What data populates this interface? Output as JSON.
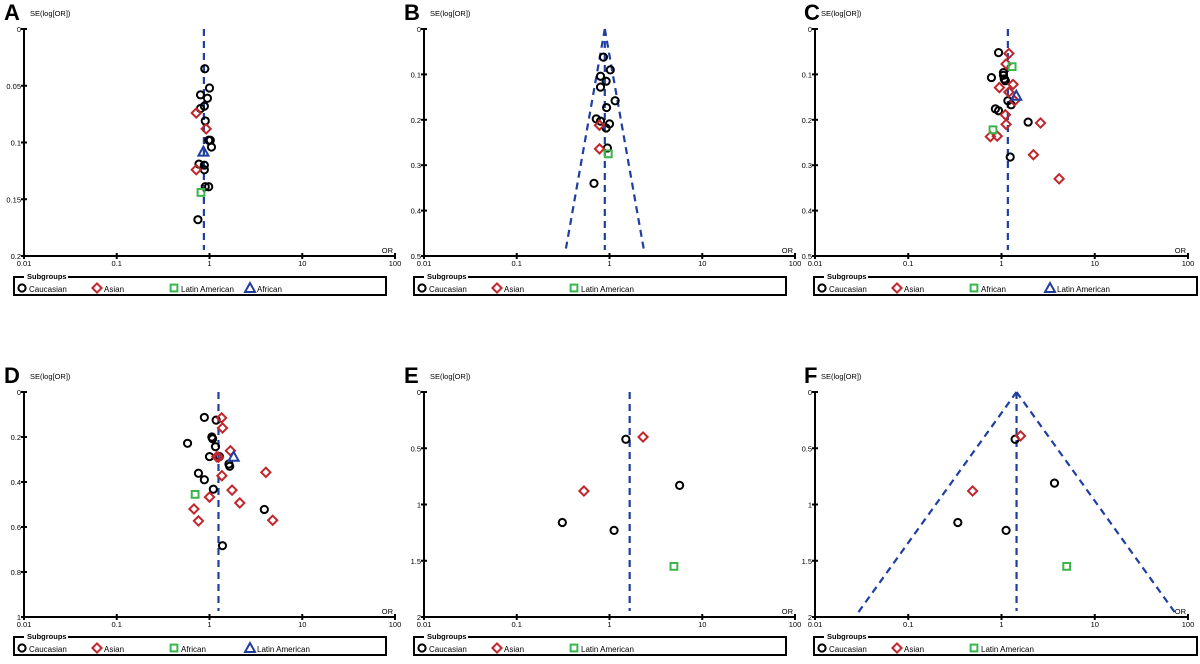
{
  "figure": {
    "marker_colors": {
      "Caucasian": "#000000",
      "Asian": "#c0272d",
      "Latin American": "#3cb44b",
      "African": "#3cb44b",
      "African_triangle": "#1f3fa0"
    },
    "line_color": "#1f3fa0",
    "legend_title": "Subgroups"
  },
  "chart_data": [
    {
      "panel": "A",
      "type": "scatter",
      "subtype": "funnel",
      "xlabel": "OR",
      "ylabel": "SE(log[OR])",
      "xscale": "log",
      "xlim": [
        0.01,
        100
      ],
      "ylim": [
        0,
        0.2
      ],
      "xticks": [
        "0.01",
        "0.1",
        "1",
        "10",
        "100"
      ],
      "yticks": [
        0,
        0.05,
        0.1,
        0.15,
        0.2
      ],
      "ytick_labels": [
        "0",
        "0.05",
        "0.1",
        "0.15",
        "0.2"
      ],
      "pooled_or": 0.87,
      "funnel_limits": false,
      "legend": [
        {
          "label": "Caucasian",
          "marker": "circle",
          "color": "#000000"
        },
        {
          "label": "Asian",
          "marker": "diamond",
          "color": "#c0272d"
        },
        {
          "label": "Latin American",
          "marker": "square",
          "color": "#3cb44b"
        },
        {
          "label": "African",
          "marker": "triangle",
          "color": "#1f3fa0"
        }
      ],
      "points": [
        {
          "group": "Caucasian",
          "or": 0.89,
          "se": 0.035
        },
        {
          "group": "Caucasian",
          "or": 1.0,
          "se": 0.052
        },
        {
          "group": "Caucasian",
          "or": 0.8,
          "se": 0.058
        },
        {
          "group": "Caucasian",
          "or": 0.95,
          "se": 0.061
        },
        {
          "group": "Caucasian",
          "or": 0.88,
          "se": 0.068
        },
        {
          "group": "Caucasian",
          "or": 0.8,
          "se": 0.07
        },
        {
          "group": "Caucasian",
          "or": 0.9,
          "se": 0.081
        },
        {
          "group": "Caucasian",
          "or": 0.98,
          "se": 0.098
        },
        {
          "group": "Caucasian",
          "or": 1.02,
          "se": 0.098
        },
        {
          "group": "Caucasian",
          "or": 1.05,
          "se": 0.104
        },
        {
          "group": "Caucasian",
          "or": 0.77,
          "se": 0.119
        },
        {
          "group": "Caucasian",
          "or": 0.88,
          "se": 0.12
        },
        {
          "group": "Caucasian",
          "or": 0.88,
          "se": 0.124
        },
        {
          "group": "Caucasian",
          "or": 0.9,
          "se": 0.139
        },
        {
          "group": "Caucasian",
          "or": 0.98,
          "se": 0.139
        },
        {
          "group": "Caucasian",
          "or": 0.75,
          "se": 0.168
        },
        {
          "group": "Asian",
          "or": 0.72,
          "se": 0.074
        },
        {
          "group": "Asian",
          "or": 0.92,
          "se": 0.088
        },
        {
          "group": "Asian",
          "or": 0.72,
          "se": 0.124
        },
        {
          "group": "Latin American",
          "or": 0.81,
          "se": 0.144
        },
        {
          "group": "African",
          "or": 0.86,
          "se": 0.108
        }
      ]
    },
    {
      "panel": "B",
      "type": "scatter",
      "subtype": "funnel",
      "xlabel": "OR",
      "ylabel": "SE(log[OR])",
      "xscale": "log",
      "xlim": [
        0.01,
        100
      ],
      "ylim": [
        0,
        0.5
      ],
      "xticks": [
        "0.01",
        "0.1",
        "1",
        "10",
        "100"
      ],
      "yticks": [
        0,
        0.1,
        0.2,
        0.3,
        0.4,
        0.5
      ],
      "ytick_labels": [
        "0",
        "0.1",
        "0.2",
        "0.3",
        "0.4",
        "0.5"
      ],
      "pooled_or": 0.89,
      "funnel_limits": true,
      "legend": [
        {
          "label": "Caucasian",
          "marker": "circle",
          "color": "#000000"
        },
        {
          "label": "Asian",
          "marker": "diamond",
          "color": "#c0272d"
        },
        {
          "label": "Latin American",
          "marker": "square",
          "color": "#3cb44b"
        }
      ],
      "points": [
        {
          "group": "Caucasian",
          "or": 0.86,
          "se": 0.062
        },
        {
          "group": "Caucasian",
          "or": 1.02,
          "se": 0.09
        },
        {
          "group": "Caucasian",
          "or": 0.8,
          "se": 0.104
        },
        {
          "group": "Caucasian",
          "or": 0.92,
          "se": 0.115
        },
        {
          "group": "Caucasian",
          "or": 0.8,
          "se": 0.128
        },
        {
          "group": "Caucasian",
          "or": 1.15,
          "se": 0.158
        },
        {
          "group": "Caucasian",
          "or": 0.93,
          "se": 0.173
        },
        {
          "group": "Caucasian",
          "or": 0.72,
          "se": 0.198
        },
        {
          "group": "Caucasian",
          "or": 0.8,
          "se": 0.203
        },
        {
          "group": "Caucasian",
          "or": 1.0,
          "se": 0.209
        },
        {
          "group": "Caucasian",
          "or": 0.92,
          "se": 0.218
        },
        {
          "group": "Caucasian",
          "or": 0.95,
          "se": 0.262
        },
        {
          "group": "Caucasian",
          "or": 0.68,
          "se": 0.34
        },
        {
          "group": "Asian",
          "or": 0.78,
          "se": 0.212
        },
        {
          "group": "Asian",
          "or": 0.78,
          "se": 0.264
        },
        {
          "group": "Latin American",
          "or": 0.97,
          "se": 0.275
        }
      ]
    },
    {
      "panel": "C",
      "type": "scatter",
      "subtype": "funnel",
      "xlabel": "OR",
      "ylabel": "SE(log[OR])",
      "xscale": "log",
      "xlim": [
        0.01,
        100
      ],
      "ylim": [
        0,
        0.5
      ],
      "xticks": [
        "0.01",
        "0.1",
        "1",
        "10",
        "100"
      ],
      "yticks": [
        0,
        0.1,
        0.2,
        0.3,
        0.4,
        0.5
      ],
      "ytick_labels": [
        "0",
        "0.1",
        "0.2",
        "0.3",
        "0.4",
        "0.5"
      ],
      "pooled_or": 1.17,
      "funnel_limits": false,
      "legend": [
        {
          "label": "Caucasian",
          "marker": "circle",
          "color": "#000000"
        },
        {
          "label": "Asian",
          "marker": "diamond",
          "color": "#c0272d"
        },
        {
          "label": "African",
          "marker": "square",
          "color": "#3cb44b"
        },
        {
          "label": "Latin American",
          "marker": "triangle",
          "color": "#1f3fa0"
        }
      ],
      "points": [
        {
          "group": "Caucasian",
          "or": 0.93,
          "se": 0.052
        },
        {
          "group": "Caucasian",
          "or": 1.05,
          "se": 0.096
        },
        {
          "group": "Caucasian",
          "or": 1.05,
          "se": 0.102
        },
        {
          "group": "Caucasian",
          "or": 0.78,
          "se": 0.107
        },
        {
          "group": "Caucasian",
          "or": 1.07,
          "se": 0.11
        },
        {
          "group": "Caucasian",
          "or": 1.1,
          "se": 0.114
        },
        {
          "group": "Caucasian",
          "or": 1.17,
          "se": 0.158
        },
        {
          "group": "Caucasian",
          "or": 1.27,
          "se": 0.167
        },
        {
          "group": "Caucasian",
          "or": 0.86,
          "se": 0.176
        },
        {
          "group": "Caucasian",
          "or": 0.93,
          "se": 0.18
        },
        {
          "group": "Caucasian",
          "or": 1.93,
          "se": 0.205
        },
        {
          "group": "Caucasian",
          "or": 1.24,
          "se": 0.282
        },
        {
          "group": "Asian",
          "or": 1.2,
          "se": 0.054
        },
        {
          "group": "Asian",
          "or": 1.12,
          "se": 0.077
        },
        {
          "group": "Asian",
          "or": 1.33,
          "se": 0.122
        },
        {
          "group": "Asian",
          "or": 0.95,
          "se": 0.129
        },
        {
          "group": "Asian",
          "or": 1.2,
          "se": 0.139
        },
        {
          "group": "Asian",
          "or": 1.38,
          "se": 0.158
        },
        {
          "group": "Asian",
          "or": 1.1,
          "se": 0.189
        },
        {
          "group": "Asian",
          "or": 1.12,
          "se": 0.21
        },
        {
          "group": "Asian",
          "or": 2.62,
          "se": 0.207
        },
        {
          "group": "Asian",
          "or": 0.76,
          "se": 0.237
        },
        {
          "group": "Asian",
          "or": 0.9,
          "se": 0.236
        },
        {
          "group": "Asian",
          "or": 2.2,
          "se": 0.277
        },
        {
          "group": "Asian",
          "or": 4.15,
          "se": 0.33
        },
        {
          "group": "African",
          "or": 1.3,
          "se": 0.083
        },
        {
          "group": "African",
          "or": 0.81,
          "se": 0.222
        },
        {
          "group": "Latin American",
          "or": 1.44,
          "se": 0.147
        }
      ]
    },
    {
      "panel": "D",
      "type": "scatter",
      "subtype": "funnel",
      "xlabel": "OR",
      "ylabel": "SE(log[OR])",
      "xscale": "log",
      "xlim": [
        0.01,
        100
      ],
      "ylim": [
        0,
        1
      ],
      "xticks": [
        "0.01",
        "0.1",
        "1",
        "10",
        "100"
      ],
      "yticks": [
        0,
        0.2,
        0.4,
        0.6,
        0.8,
        1
      ],
      "ytick_labels": [
        "0",
        "0.2",
        "0.4",
        "0.6",
        "0.8",
        "1"
      ],
      "pooled_or": 1.25,
      "funnel_limits": false,
      "legend": [
        {
          "label": "Caucasian",
          "marker": "circle",
          "color": "#000000"
        },
        {
          "label": "Asian",
          "marker": "diamond",
          "color": "#c0272d"
        },
        {
          "label": "African",
          "marker": "square",
          "color": "#3cb44b"
        },
        {
          "label": "Latin American",
          "marker": "triangle",
          "color": "#1f3fa0"
        }
      ],
      "points": [
        {
          "group": "Caucasian",
          "or": 0.88,
          "se": 0.113
        },
        {
          "group": "Caucasian",
          "or": 1.18,
          "se": 0.125
        },
        {
          "group": "Caucasian",
          "or": 1.06,
          "se": 0.2
        },
        {
          "group": "Caucasian",
          "or": 1.08,
          "se": 0.208
        },
        {
          "group": "Caucasian",
          "or": 0.58,
          "se": 0.228
        },
        {
          "group": "Caucasian",
          "or": 1.16,
          "se": 0.243
        },
        {
          "group": "Caucasian",
          "or": 1.0,
          "se": 0.287
        },
        {
          "group": "Caucasian",
          "or": 1.28,
          "se": 0.287
        },
        {
          "group": "Caucasian",
          "or": 1.62,
          "se": 0.32
        },
        {
          "group": "Caucasian",
          "or": 1.65,
          "se": 0.33
        },
        {
          "group": "Caucasian",
          "or": 0.76,
          "se": 0.361
        },
        {
          "group": "Caucasian",
          "or": 0.88,
          "se": 0.39
        },
        {
          "group": "Caucasian",
          "or": 1.1,
          "se": 0.432
        },
        {
          "group": "Caucasian",
          "or": 3.9,
          "se": 0.522
        },
        {
          "group": "Caucasian",
          "or": 1.38,
          "se": 0.683
        },
        {
          "group": "Asian",
          "or": 1.35,
          "se": 0.115
        },
        {
          "group": "Asian",
          "or": 1.38,
          "se": 0.16
        },
        {
          "group": "Asian",
          "or": 1.68,
          "se": 0.261
        },
        {
          "group": "Asian",
          "or": 1.2,
          "se": 0.288
        },
        {
          "group": "Asian",
          "or": 1.25,
          "se": 0.29
        },
        {
          "group": "Asian",
          "or": 4.05,
          "se": 0.357
        },
        {
          "group": "Asian",
          "or": 1.36,
          "se": 0.372
        },
        {
          "group": "Asian",
          "or": 1.75,
          "se": 0.436
        },
        {
          "group": "Asian",
          "or": 1.0,
          "se": 0.467
        },
        {
          "group": "Asian",
          "or": 2.12,
          "se": 0.493
        },
        {
          "group": "Asian",
          "or": 0.68,
          "se": 0.52
        },
        {
          "group": "Asian",
          "or": 0.76,
          "se": 0.573
        },
        {
          "group": "Asian",
          "or": 4.8,
          "se": 0.57
        },
        {
          "group": "African",
          "or": 0.7,
          "se": 0.455
        },
        {
          "group": "Latin American",
          "or": 1.82,
          "se": 0.288
        }
      ]
    },
    {
      "panel": "E",
      "type": "scatter",
      "subtype": "funnel",
      "xlabel": "OR",
      "ylabel": "SE(log[OR])",
      "xscale": "log",
      "xlim": [
        0.01,
        100
      ],
      "ylim": [
        0,
        2
      ],
      "xticks": [
        "0.01",
        "0.1",
        "1",
        "10",
        "100"
      ],
      "yticks": [
        0,
        0.5,
        1,
        1.5,
        2
      ],
      "ytick_labels": [
        "0",
        "0.5",
        "1",
        "1.5",
        "2"
      ],
      "pooled_or": 1.65,
      "funnel_limits": false,
      "legend": [
        {
          "label": "Caucasian",
          "marker": "circle",
          "color": "#000000"
        },
        {
          "label": "Asian",
          "marker": "diamond",
          "color": "#c0272d"
        },
        {
          "label": "Latin American",
          "marker": "square",
          "color": "#3cb44b"
        }
      ],
      "points": [
        {
          "group": "Caucasian",
          "or": 1.5,
          "se": 0.42
        },
        {
          "group": "Caucasian",
          "or": 5.7,
          "se": 0.83
        },
        {
          "group": "Caucasian",
          "or": 0.31,
          "se": 1.16
        },
        {
          "group": "Caucasian",
          "or": 1.12,
          "se": 1.23
        },
        {
          "group": "Asian",
          "or": 2.3,
          "se": 0.4
        },
        {
          "group": "Asian",
          "or": 0.53,
          "se": 0.88
        },
        {
          "group": "Latin American",
          "or": 4.95,
          "se": 1.55
        }
      ]
    },
    {
      "panel": "F",
      "type": "scatter",
      "subtype": "funnel",
      "xlabel": "OR",
      "ylabel": "SE(log[OR])",
      "xscale": "log",
      "xlim": [
        0.01,
        100
      ],
      "ylim": [
        0,
        2
      ],
      "xticks": [
        "0.01",
        "0.1",
        "1",
        "10",
        "100"
      ],
      "yticks": [
        0,
        0.5,
        1,
        1.5,
        2
      ],
      "ytick_labels": [
        "0",
        "0.5",
        "1",
        "1.5",
        "2"
      ],
      "pooled_or": 1.45,
      "funnel_limits": true,
      "legend": [
        {
          "label": "Caucasian",
          "marker": "circle",
          "color": "#000000"
        },
        {
          "label": "Asian",
          "marker": "diamond",
          "color": "#c0272d"
        },
        {
          "label": "Latin American",
          "marker": "square",
          "color": "#3cb44b"
        }
      ],
      "points": [
        {
          "group": "Caucasian",
          "or": 1.4,
          "se": 0.42
        },
        {
          "group": "Caucasian",
          "or": 3.7,
          "se": 0.81
        },
        {
          "group": "Caucasian",
          "or": 0.34,
          "se": 1.16
        },
        {
          "group": "Caucasian",
          "or": 1.12,
          "se": 1.23
        },
        {
          "group": "Asian",
          "or": 1.6,
          "se": 0.39
        },
        {
          "group": "Asian",
          "or": 0.49,
          "se": 0.88
        },
        {
          "group": "Latin American",
          "or": 5.0,
          "se": 1.55
        }
      ]
    }
  ]
}
